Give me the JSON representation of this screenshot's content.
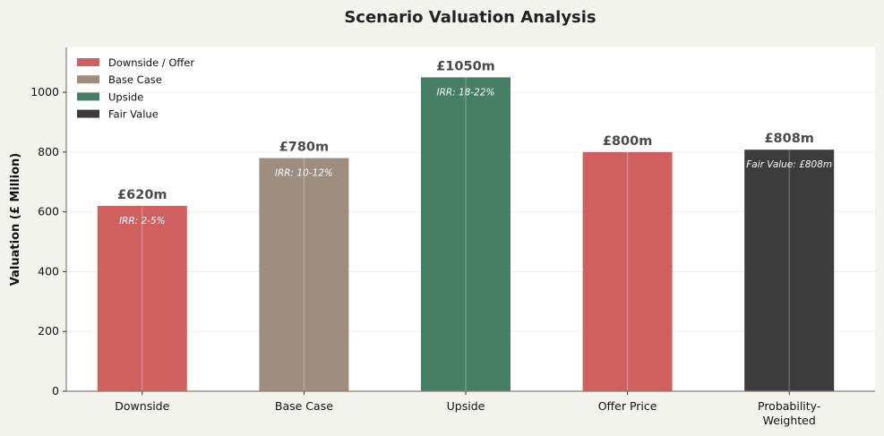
{
  "chart_data": {
    "type": "bar",
    "title": "Scenario Valuation Analysis",
    "xlabel": "",
    "ylabel": "Valuation (£ Million)",
    "ylim": [
      0,
      1150
    ],
    "yticks": [
      0,
      200,
      400,
      600,
      800,
      1000
    ],
    "grid": true,
    "legend_position": "top-left",
    "categories": [
      "Downside",
      "Base Case",
      "Upside",
      "Offer Price",
      "Probability-Weighted"
    ],
    "category_lines": [
      [
        "Downside"
      ],
      [
        "Base Case"
      ],
      [
        "Upside"
      ],
      [
        "Offer Price"
      ],
      [
        "Probability-",
        "Weighted"
      ]
    ],
    "values": [
      620,
      780,
      1050,
      800,
      808
    ],
    "value_labels": [
      "£620m",
      "£780m",
      "£1050m",
      "£800m",
      "£808m"
    ],
    "annotations": [
      "IRR: 2-5%",
      "IRR: 10-12%",
      "IRR: 18-22%",
      "",
      "Fair Value: £808m"
    ],
    "bar_colors": [
      "#d06060",
      "#9e8e80",
      "#467f66",
      "#d06060",
      "#3c3c3c"
    ],
    "legend": [
      {
        "label": "Downside / Offer",
        "color": "#d06060"
      },
      {
        "label": "Base Case",
        "color": "#9e8e80"
      },
      {
        "label": "Upside",
        "color": "#467f66"
      },
      {
        "label": "Fair Value",
        "color": "#3c3c3c"
      }
    ]
  }
}
